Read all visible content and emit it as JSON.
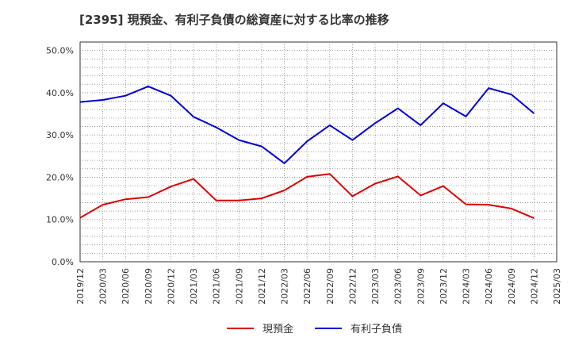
{
  "chart_data": {
    "type": "line",
    "title": "[2395]  現預金、有利子負債の総資産に対する比率の推移",
    "xlabel": "",
    "ylabel": "",
    "ylim": [
      0,
      0.52
    ],
    "yticks": [
      0.0,
      0.1,
      0.2,
      0.3,
      0.4,
      0.5
    ],
    "ytick_labels": [
      "0.0%",
      "10.0%",
      "20.0%",
      "30.0%",
      "40.0%",
      "50.0%"
    ],
    "grid": true,
    "legend_position": "bottom-center",
    "x": [
      "2019/12",
      "2020/03",
      "2020/06",
      "2020/09",
      "2020/12",
      "2021/03",
      "2021/06",
      "2021/09",
      "2021/12",
      "2022/03",
      "2022/06",
      "2022/09",
      "2022/12",
      "2023/03",
      "2023/06",
      "2023/09",
      "2023/12",
      "2024/03",
      "2024/06",
      "2024/09",
      "2024/12",
      "2025/03"
    ],
    "series": [
      {
        "name": "現預金",
        "color": "#e00000",
        "values": [
          0.104,
          0.135,
          0.148,
          0.153,
          0.178,
          0.196,
          0.145,
          0.145,
          0.15,
          0.169,
          0.201,
          0.208,
          0.155,
          0.185,
          0.202,
          0.157,
          0.179,
          0.136,
          0.135,
          0.126,
          0.103,
          null
        ]
      },
      {
        "name": "有利子負債",
        "color": "#0000d8",
        "values": [
          0.378,
          0.383,
          0.393,
          0.415,
          0.393,
          0.343,
          0.318,
          0.288,
          0.273,
          0.233,
          0.285,
          0.323,
          0.288,
          0.328,
          0.363,
          0.323,
          0.375,
          0.344,
          0.411,
          0.396,
          0.351,
          null
        ]
      }
    ]
  }
}
